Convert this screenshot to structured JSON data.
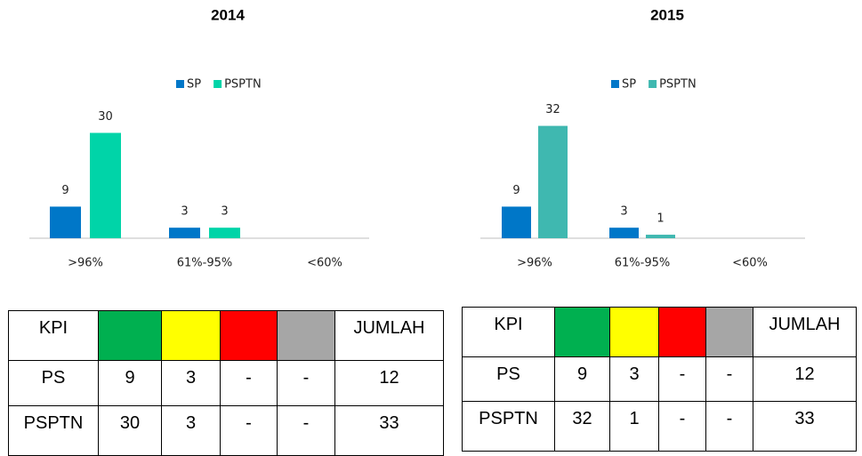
{
  "chart_data": [
    {
      "type": "bar",
      "title": "2014",
      "categories": [
        ">96%",
        "61%-95%",
        "<60%"
      ],
      "series": [
        {
          "name": "SP",
          "color": "#0077c8",
          "values": [
            9,
            3,
            null
          ]
        },
        {
          "name": "PSPTN",
          "color": "#00d4a8",
          "values": [
            30,
            3,
            null
          ]
        }
      ]
    },
    {
      "type": "bar",
      "title": "2015",
      "categories": [
        ">96%",
        "61%-95%",
        "<60%"
      ],
      "series": [
        {
          "name": "SP",
          "color": "#0077c8",
          "values": [
            9,
            3,
            null
          ]
        },
        {
          "name": "PSPTN",
          "color": "#3fb8b0",
          "values": [
            32,
            1,
            null
          ]
        }
      ]
    }
  ],
  "tables": [
    {
      "header": [
        "KPI",
        "JUMLAH"
      ],
      "header_colors": [
        "#00b050",
        "#ffff00",
        "#ff0000",
        "#a6a6a6"
      ],
      "rows": [
        [
          "PS",
          "9",
          "3",
          "-",
          "-",
          "12"
        ],
        [
          "PSPTN",
          "30",
          "3",
          "-",
          "-",
          "33"
        ]
      ]
    },
    {
      "header": [
        "KPI",
        "JUMLAH"
      ],
      "header_colors": [
        "#00b050",
        "#ffff00",
        "#ff0000",
        "#a6a6a6"
      ],
      "rows": [
        [
          "PS",
          "9",
          "3",
          "-",
          "-",
          "12"
        ],
        [
          "PSPTN",
          "32",
          "1",
          "-",
          "-",
          "33"
        ]
      ]
    }
  ]
}
